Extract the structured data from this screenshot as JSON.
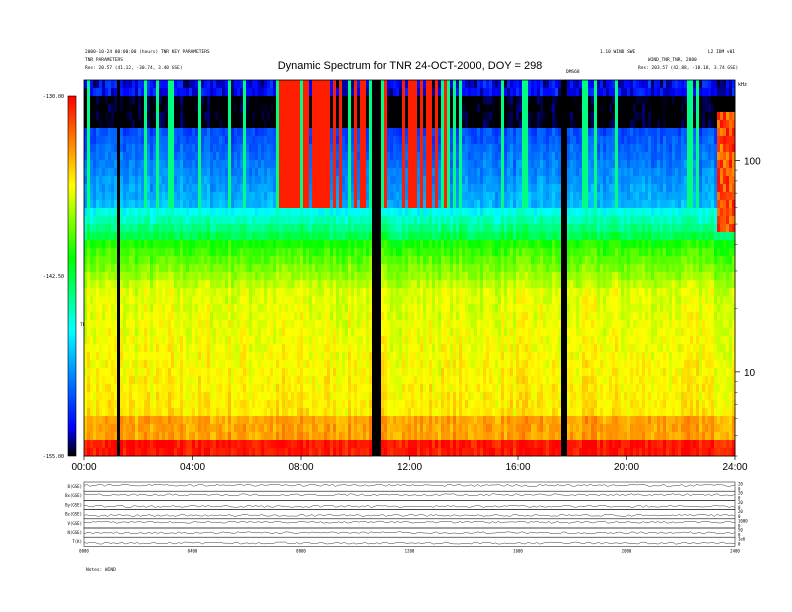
{
  "header": {
    "title": "Dynamic Spectrum for TNR 24-OCT-2000, DOY = 298",
    "meta_left_1": "2000-10-24 00:00:00 (hours) TNR KEY PARAMETERS",
    "meta_left_2": "TNR PARAMETERS",
    "meta_left_3": "Res:  20.57 (41.12, -30.74, 3.40 GSE)",
    "meta_right_1": "1.10 WIND SWE",
    "meta_right_2": "L2 IDM v01",
    "meta_right_3": "WIND_TNR_TNR, 2000",
    "meta_right_4": "Res:  203.57 (42.88, -18.18, 3.74 GSE)",
    "marker_label": "DMS68",
    "khz_label": "kHz"
  },
  "colorbar": {
    "ticks": [
      "-130.00",
      "-142.50",
      "-155.00"
    ],
    "label": "TNR"
  },
  "chart_data": {
    "type": "heatmap",
    "title": "Dynamic Spectrum for TNR 24-OCT-2000, DOY = 298",
    "x_ticks": [
      "00:00",
      "04:00",
      "08:00",
      "12:00",
      "16:00",
      "20:00",
      "24:00"
    ],
    "x_range_hours": [
      0,
      24
    ],
    "y_scale": "log",
    "y_unit": "kHz",
    "y_ticks": [
      100,
      10
    ],
    "y_range_khz": [
      4,
      240
    ],
    "color_range_db": [
      -155.0,
      -130.0
    ],
    "colormap": [
      "#000000",
      "#0000ff",
      "#00ffff",
      "#00ff00",
      "#ffff00",
      "#ff0000"
    ],
    "data_gaps_hours": [
      [
        1.2,
        1.3
      ],
      [
        10.6,
        11.0
      ],
      [
        17.6,
        17.8
      ]
    ],
    "intense_burst_window_hours": [
      7.0,
      13.6
    ],
    "panels": [
      {
        "label": "B(GSE)",
        "right_ticks": [
          "20",
          "0"
        ]
      },
      {
        "label": "Bx(GSE)",
        "right_ticks": [
          "20",
          "0"
        ]
      },
      {
        "label": "By(GSE)",
        "right_ticks": [
          "20",
          "0"
        ]
      },
      {
        "label": "Bz(GSE)",
        "right_ticks": [
          "20",
          "0"
        ]
      },
      {
        "label": "V(GSE)",
        "right_ticks": [
          "1000",
          "0"
        ]
      },
      {
        "label": "N(GSE)",
        "right_ticks": [
          "50",
          "0"
        ]
      },
      {
        "label": "T(K)",
        "right_ticks": [
          "1e6",
          "0"
        ]
      }
    ],
    "panel_x_ticks": [
      "0000",
      "0400",
      "0800",
      "1200",
      "1600",
      "2000",
      "2400"
    ],
    "panel_footer": "Notes:  WIND"
  }
}
